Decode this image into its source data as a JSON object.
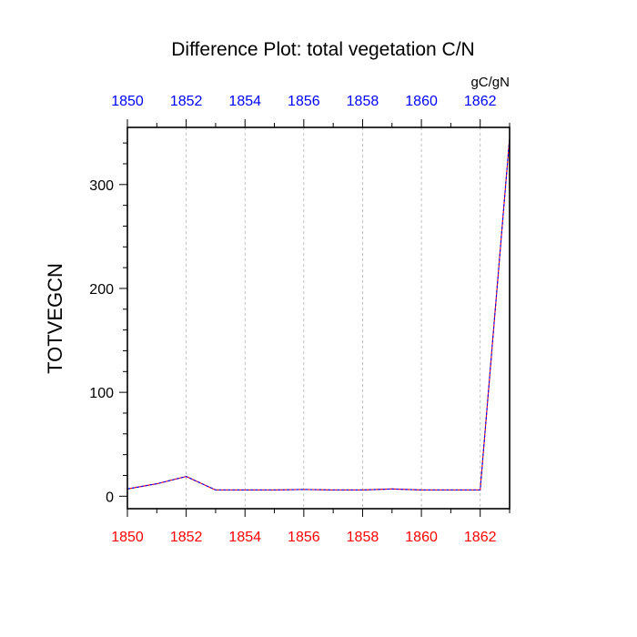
{
  "chart_data": {
    "type": "line",
    "title": "Difference Plot: total vegetation C/N",
    "units_label": "gC/gN",
    "ylabel": "TOTVEGCN",
    "xlabel": "",
    "xlim": [
      1850,
      1863
    ],
    "ylim": [
      -12,
      355
    ],
    "x_ticks": [
      "1850",
      "1852",
      "1854",
      "1856",
      "1858",
      "1860",
      "1862"
    ],
    "y_ticks": [
      "0",
      "100",
      "200",
      "300"
    ],
    "grid": "vertical dashed at major x ticks",
    "colors": {
      "bottom_axis_labels": "#ff0000",
      "top_axis_labels": "#0000ff",
      "series_a": "#ff0000",
      "series_b": "#0000ff"
    },
    "series": [
      {
        "x": [
          1850,
          1851,
          1852,
          1853,
          1854,
          1855,
          1856,
          1857,
          1858,
          1859,
          1860,
          1861,
          1862,
          1863
        ],
        "values": [
          7,
          12,
          19,
          6,
          6,
          6,
          6.5,
          6,
          6,
          7,
          6,
          6,
          6,
          345
        ]
      },
      {
        "x": [
          1850,
          1851,
          1852,
          1853,
          1854,
          1855,
          1856,
          1857,
          1858,
          1859,
          1860,
          1861,
          1862,
          1863
        ],
        "values": [
          7,
          12,
          19,
          6,
          6,
          6,
          6.5,
          6,
          6,
          7,
          6,
          6,
          6,
          345
        ]
      }
    ]
  }
}
